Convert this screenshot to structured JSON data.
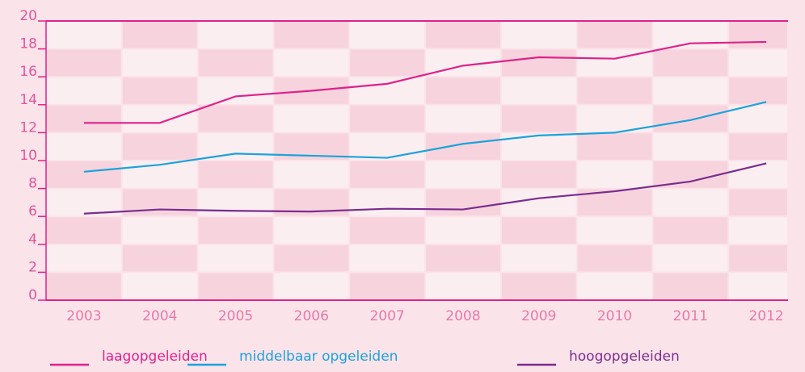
{
  "chart_data": {
    "type": "line",
    "categories": [
      "2003",
      "2004",
      "2005",
      "2006",
      "2007",
      "2008",
      "2009",
      "2010",
      "2011",
      "2012"
    ],
    "series": [
      {
        "name": "laagopgeleiden",
        "color": "#e0218a",
        "values": [
          12.7,
          12.7,
          14.6,
          15.0,
          15.5,
          16.8,
          17.4,
          17.3,
          18.4,
          18.5
        ]
      },
      {
        "name": "middelbaar opgeleiden",
        "color": "#1ba3dc",
        "values": [
          9.2,
          9.7,
          10.5,
          10.35,
          10.2,
          11.2,
          11.8,
          12.0,
          12.9,
          14.2
        ]
      },
      {
        "name": "hoogopgeleiden",
        "color": "#7b2c8f",
        "values": [
          6.2,
          6.5,
          6.4,
          6.35,
          6.55,
          6.5,
          7.3,
          7.8,
          8.5,
          9.8
        ]
      }
    ],
    "ylim": [
      0,
      20
    ],
    "yticks": [
      0,
      2,
      4,
      6,
      8,
      10,
      12,
      14,
      16,
      18,
      20
    ],
    "grid": true
  }
}
